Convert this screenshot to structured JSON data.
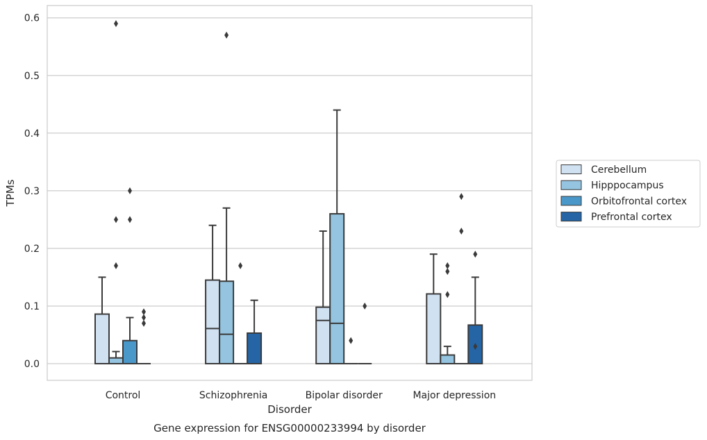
{
  "chart_data": {
    "type": "box",
    "title": "Gene expression for ENSG00000233994 by disorder",
    "xlabel": "Disorder",
    "ylabel": "TPMs",
    "ylim": [
      -0.028,
      0.62
    ],
    "yticks": [
      "0.0",
      "0.1",
      "0.2",
      "0.3",
      "0.4",
      "0.5",
      "0.6"
    ],
    "grid": true,
    "legend_position": "right",
    "categories": [
      "Control",
      "Schizophrenia",
      "Bipolar disorder",
      "Major depression"
    ],
    "series": [
      {
        "name": "Cerebellum",
        "color": "#d0e1f2",
        "boxes": [
          {
            "q1": 0,
            "median": 0,
            "q3": 0.086,
            "whisker_low": 0,
            "whisker_high": 0.15,
            "outliers": []
          },
          {
            "q1": 0,
            "median": 0.061,
            "q3": 0.145,
            "whisker_low": 0,
            "whisker_high": 0.24,
            "outliers": []
          },
          {
            "q1": 0,
            "median": 0.075,
            "q3": 0.098,
            "whisker_low": 0,
            "whisker_high": 0.23,
            "outliers": []
          },
          {
            "q1": 0,
            "median": 0,
            "q3": 0.121,
            "whisker_low": 0,
            "whisker_high": 0.19,
            "outliers": []
          }
        ]
      },
      {
        "name": "Hipppocampus",
        "color": "#94c4df",
        "boxes": [
          {
            "q1": 0,
            "median": 0,
            "q3": 0.01,
            "whisker_low": 0,
            "whisker_high": 0.021,
            "outliers": [
              0.17,
              0.25,
              0.59
            ]
          },
          {
            "q1": 0,
            "median": 0.051,
            "q3": 0.143,
            "whisker_low": 0,
            "whisker_high": 0.27,
            "outliers": [
              0.57
            ]
          },
          {
            "q1": 0,
            "median": 0.07,
            "q3": 0.26,
            "whisker_low": 0,
            "whisker_high": 0.44,
            "outliers": []
          },
          {
            "q1": 0,
            "median": 0,
            "q3": 0.015,
            "whisker_low": 0,
            "whisker_high": 0.03,
            "outliers": [
              0.12,
              0.16,
              0.17
            ]
          }
        ]
      },
      {
        "name": "Orbitofrontal cortex",
        "color": "#4a98c9",
        "boxes": [
          {
            "q1": 0,
            "median": 0,
            "q3": 0.04,
            "whisker_low": 0,
            "whisker_high": 0.08,
            "outliers": [
              0.25,
              0.3
            ]
          },
          {
            "q1": 0,
            "median": 0,
            "q3": 0,
            "whisker_low": 0,
            "whisker_high": 0,
            "outliers": [
              0.17
            ]
          },
          {
            "q1": 0,
            "median": 0,
            "q3": 0,
            "whisker_low": 0,
            "whisker_high": 0,
            "outliers": [
              0.04
            ]
          },
          {
            "q1": 0,
            "median": 0,
            "q3": 0,
            "whisker_low": 0,
            "whisker_high": 0,
            "outliers": [
              0.23,
              0.29
            ]
          }
        ]
      },
      {
        "name": "Prefrontal cortex",
        "color": "#2565a5",
        "boxes": [
          {
            "q1": 0,
            "median": 0,
            "q3": 0,
            "whisker_low": 0,
            "whisker_high": 0,
            "outliers": [
              0.07,
              0.08,
              0.09
            ]
          },
          {
            "q1": 0,
            "median": 0,
            "q3": 0.053,
            "whisker_low": 0,
            "whisker_high": 0.11,
            "outliers": []
          },
          {
            "q1": 0,
            "median": 0,
            "q3": 0,
            "whisker_low": 0,
            "whisker_high": 0,
            "outliers": [
              0.1
            ]
          },
          {
            "q1": 0,
            "median": 0,
            "q3": 0.067,
            "whisker_low": 0,
            "whisker_high": 0.15,
            "outliers": [
              0.03,
              0.19
            ]
          }
        ]
      }
    ]
  }
}
